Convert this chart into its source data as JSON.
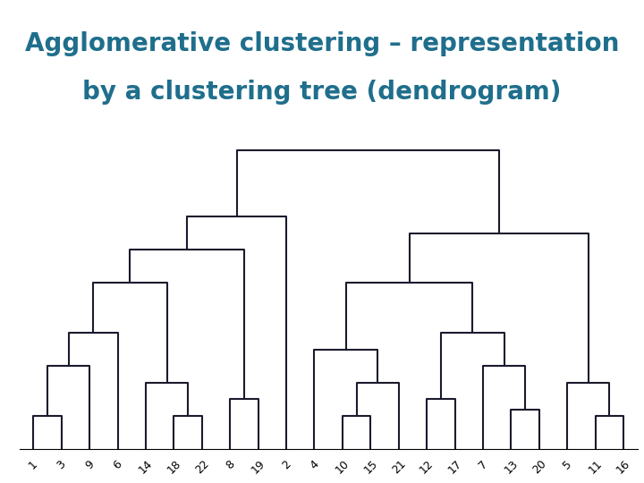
{
  "title_line1": "Agglomerative clustering – representation",
  "title_line2": "by a clustering tree (dendrogram)",
  "title_color": "#1F6E8C",
  "title_fontsize": 20,
  "bg_color": "#FFFFFF",
  "labels": [
    "1",
    "3",
    "9",
    "6",
    "14",
    "18",
    "22",
    "8",
    "19",
    "2",
    "4",
    "10",
    "15",
    "21",
    "12",
    "17",
    "7",
    "13",
    "20",
    "5",
    "11",
    "16"
  ],
  "line_color": "#1a1a2e",
  "line_width": 1.2,
  "label_fontsize": 9,
  "fig_width": 7.2,
  "fig_height": 5.4,
  "dpi": 100
}
